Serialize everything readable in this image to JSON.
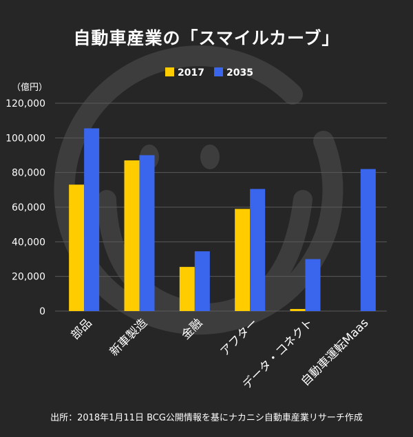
{
  "chart_data": {
    "type": "bar",
    "title": "自動車産業の「スマイルカーブ」",
    "unit_label": "（億円）",
    "categories": [
      "部品",
      "新車製造",
      "金融",
      "アフター",
      "データ・コネクト",
      "自動車運転Maas"
    ],
    "series": [
      {
        "name": "2017",
        "color": "#FFCC00",
        "values": [
          73000,
          87000,
          25500,
          59000,
          1200,
          0
        ]
      },
      {
        "name": "2035",
        "color": "#3A66EE",
        "values": [
          105500,
          90000,
          34500,
          70500,
          30000,
          82000
        ]
      }
    ],
    "yticks": [
      "120,000",
      "100,000",
      "80,000",
      "60,000",
      "40,000",
      "20,000",
      "0"
    ],
    "ylim": [
      0,
      120000
    ],
    "grid": true,
    "legend_position": "top-center"
  },
  "source": "出所：2018年1月11日 BCG公開情報を基にナカニシ自動車産業リサーチ作成",
  "colors": {
    "background": "#262626",
    "grid": "#5a5a5a",
    "smiley": "#3d3d3d"
  }
}
